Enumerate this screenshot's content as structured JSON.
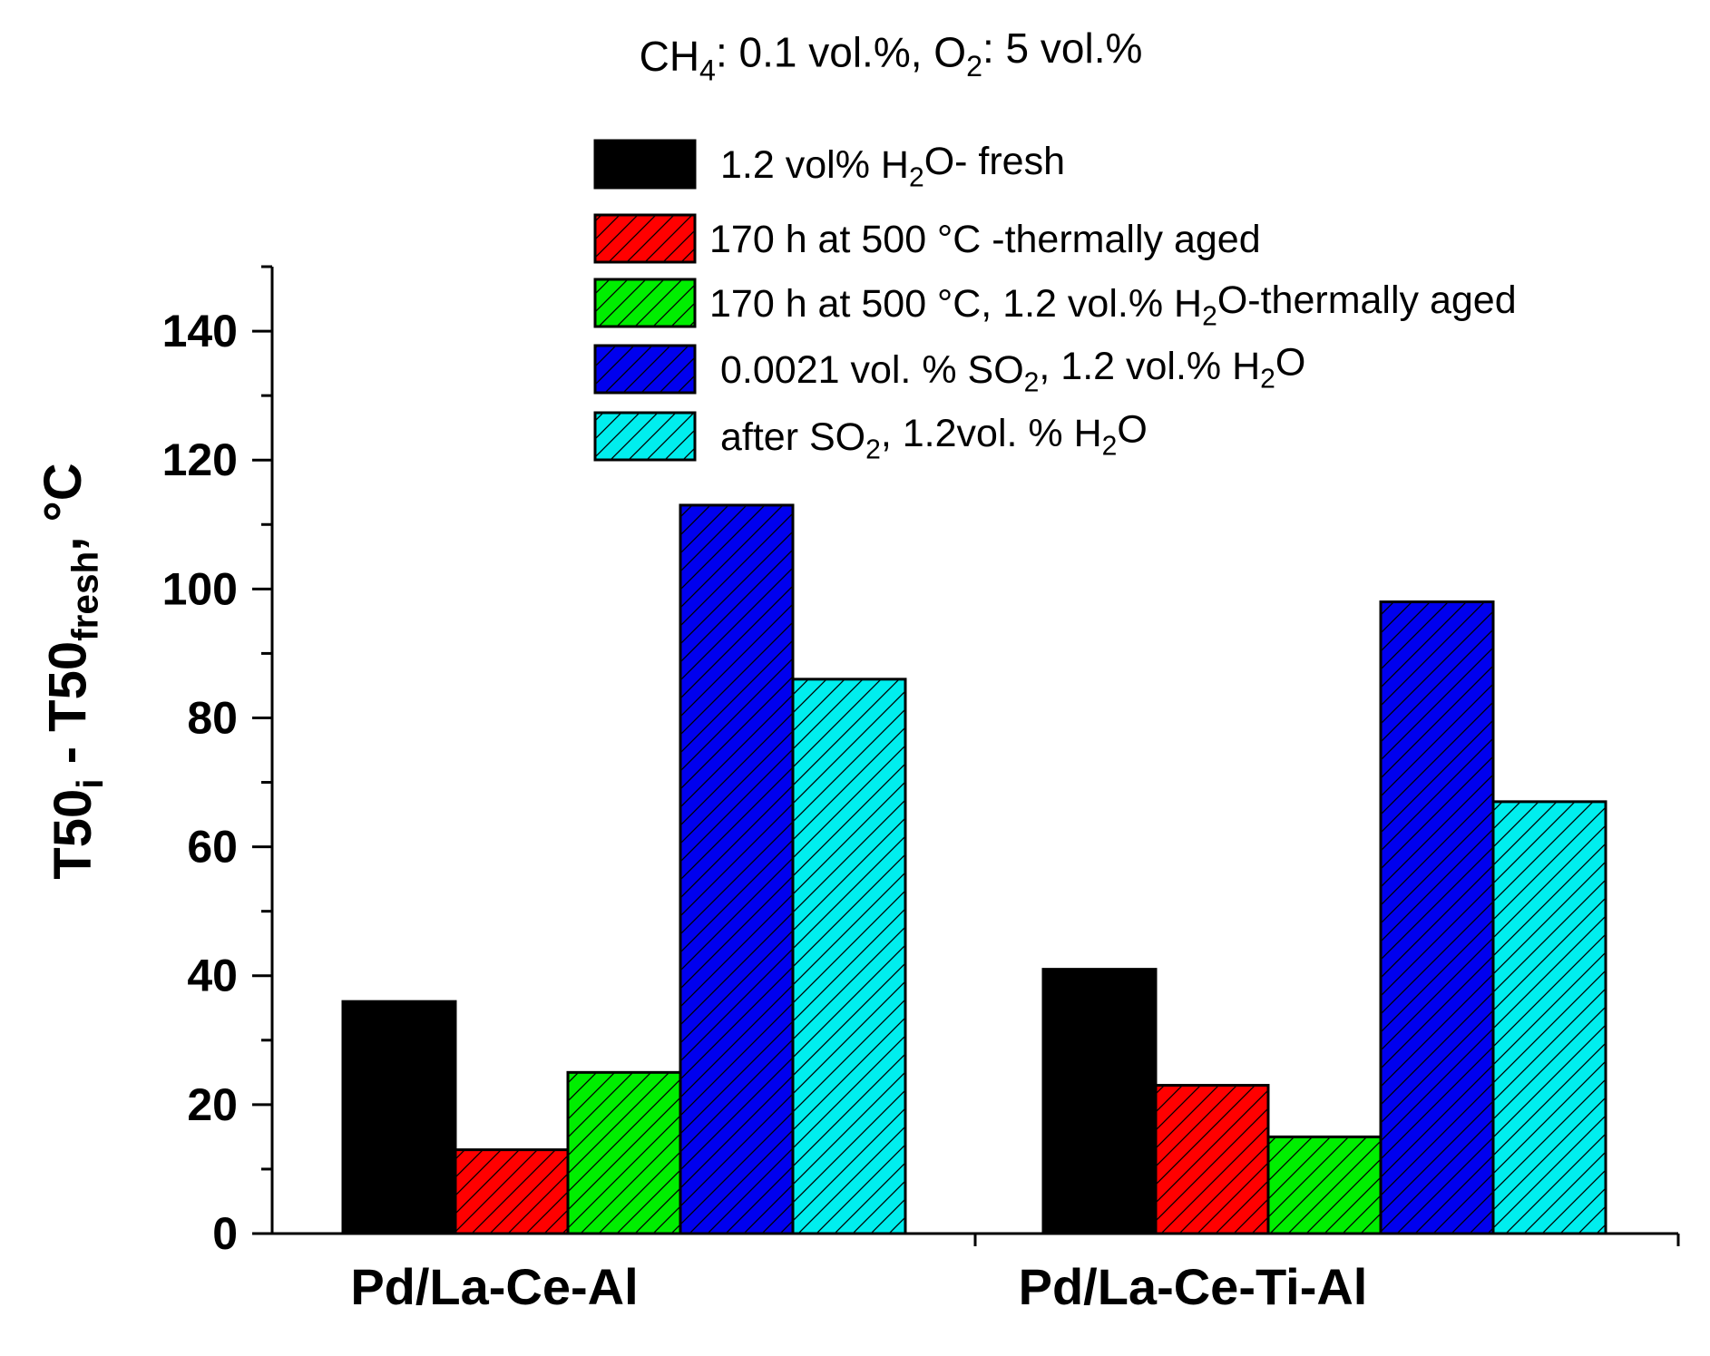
{
  "chart_data": {
    "type": "bar",
    "title_parts": [
      {
        "text": "CH",
        "sub": false
      },
      {
        "text": "4",
        "sub": true
      },
      {
        "text": ": 0.1 vol.%, O",
        "sub": false
      },
      {
        "text": "2",
        "sub": true
      },
      {
        "text": ": 5 vol.%",
        "sub": false
      }
    ],
    "ylabel_parts": [
      {
        "text": "T50",
        "sub": false
      },
      {
        "text": "i",
        "sub": true
      },
      {
        "text": " - T50",
        "sub": false
      },
      {
        "text": "fresh",
        "sub": true
      },
      {
        "text": ", °C",
        "sub": false
      }
    ],
    "xlabel": "",
    "categories": [
      "Pd/La-Ce-Al",
      "Pd/La-Ce-Ti-Al"
    ],
    "ylim": [
      0,
      150
    ],
    "yticks": [
      0,
      20,
      40,
      60,
      80,
      100,
      120,
      140
    ],
    "grid": false,
    "legend_position": "top-right",
    "series": [
      {
        "name": "1.2 vol% H2O- fresh",
        "label_parts": [
          {
            "text": "1.2 vol% H",
            "sub": false
          },
          {
            "text": "2",
            "sub": true
          },
          {
            "text": "O- fresh",
            "sub": false
          }
        ],
        "color": "#000000",
        "hatch": false,
        "values": [
          36,
          41
        ]
      },
      {
        "name": "170 h at 500 °C -thermally aged",
        "label_parts": [
          {
            "text": "170 h at 500 °C -thermally aged",
            "sub": false
          }
        ],
        "color": "#ff0000",
        "hatch": true,
        "values": [
          13,
          23
        ]
      },
      {
        "name": "170 h at 500 °C, 1.2 vol.% H2O-thermally aged",
        "label_parts": [
          {
            "text": "170 h at 500 °C, 1.2 vol.% H",
            "sub": false
          },
          {
            "text": "2",
            "sub": true
          },
          {
            "text": "O-thermally aged",
            "sub": false
          }
        ],
        "color": "#00ee00",
        "hatch": true,
        "values": [
          25,
          15
        ]
      },
      {
        "name": "0.0021 vol. % SO2, 1.2 vol.% H2O",
        "label_parts": [
          {
            "text": "0.0021 vol. % SO",
            "sub": false
          },
          {
            "text": "2",
            "sub": true
          },
          {
            "text": ", 1.2 vol.% H",
            "sub": false
          },
          {
            "text": "2",
            "sub": true
          },
          {
            "text": "O",
            "sub": false
          }
        ],
        "color": "#0000ee",
        "hatch": true,
        "values": [
          113,
          98
        ]
      },
      {
        "name": "after SO2, 1.2vol. % H2O",
        "label_parts": [
          {
            "text": "after SO",
            "sub": false
          },
          {
            "text": "2",
            "sub": true
          },
          {
            "text": ", 1.2vol. % H",
            "sub": false
          },
          {
            "text": "2",
            "sub": true
          },
          {
            "text": "O",
            "sub": false
          }
        ],
        "color": "#00eeee",
        "hatch": true,
        "values": [
          86,
          67
        ]
      }
    ]
  }
}
